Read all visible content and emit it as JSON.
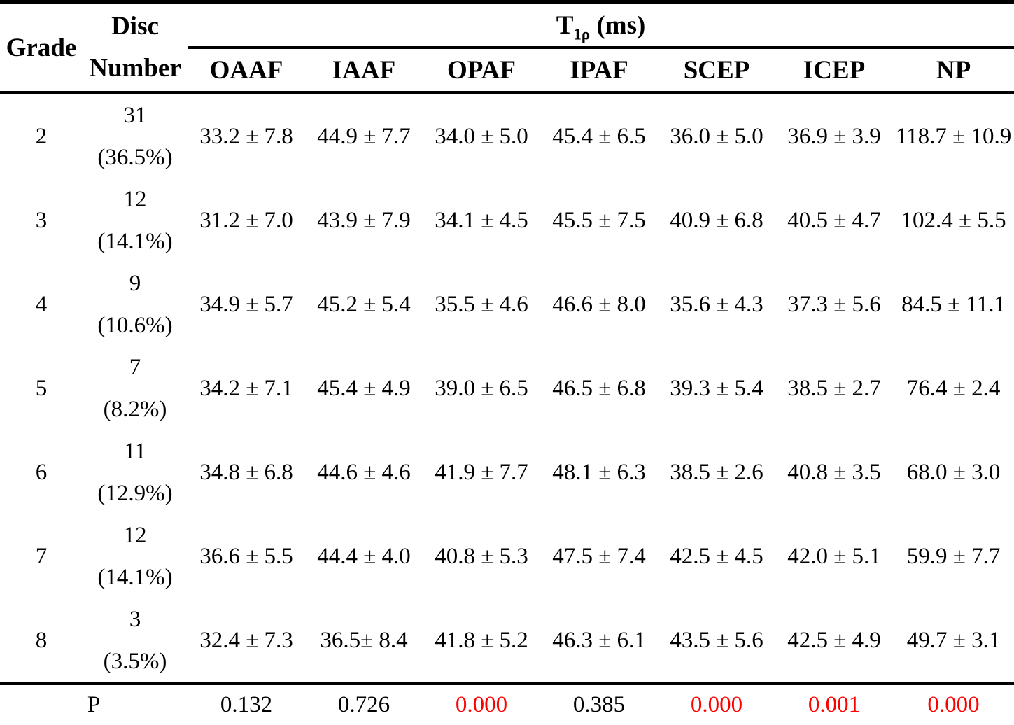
{
  "table": {
    "header": {
      "grade": "Grade",
      "disc_line1": "Disc",
      "disc_line2": "Number",
      "span_base": "T",
      "span_sub": "1ρ",
      "span_unit": " (ms)",
      "columns": [
        "OAAF",
        "IAAF",
        "OPAF",
        "IPAF",
        "SCEP",
        "ICEP",
        "NP"
      ]
    },
    "rows": [
      {
        "grade": "2",
        "disc_count": "31",
        "disc_percent": "(36.5%)",
        "values": [
          "33.2 ± 7.8",
          "44.9 ± 7.7",
          "34.0 ± 5.0",
          "45.4 ± 6.5",
          "36.0 ± 5.0",
          "36.9 ± 3.9",
          "118.7 ± 10.9"
        ]
      },
      {
        "grade": "3",
        "disc_count": "12",
        "disc_percent": "(14.1%)",
        "values": [
          "31.2 ± 7.0",
          "43.9 ± 7.9",
          "34.1 ± 4.5",
          "45.5 ± 7.5",
          "40.9 ± 6.8",
          "40.5 ± 4.7",
          "102.4 ± 5.5"
        ]
      },
      {
        "grade": "4",
        "disc_count": "9",
        "disc_percent": "(10.6%)",
        "values": [
          "34.9 ± 5.7",
          "45.2 ± 5.4",
          "35.5 ± 4.6",
          "46.6 ± 8.0",
          "35.6 ± 4.3",
          "37.3 ± 5.6",
          "84.5 ± 11.1"
        ]
      },
      {
        "grade": "5",
        "disc_count": "7",
        "disc_percent": "(8.2%)",
        "values": [
          "34.2 ± 7.1",
          "45.4 ± 4.9",
          "39.0 ± 6.5",
          "46.5 ± 6.8",
          "39.3 ± 5.4",
          "38.5 ± 2.7",
          "76.4 ± 2.4"
        ]
      },
      {
        "grade": "6",
        "disc_count": "11",
        "disc_percent": "(12.9%)",
        "values": [
          "34.8 ± 6.8",
          "44.6 ± 4.6",
          "41.9 ± 7.7",
          "48.1 ± 6.3",
          "38.5 ± 2.6",
          "40.8 ± 3.5",
          "68.0 ± 3.0"
        ]
      },
      {
        "grade": "7",
        "disc_count": "12",
        "disc_percent": "(14.1%)",
        "values": [
          "36.6 ± 5.5",
          "44.4 ± 4.0",
          "40.8 ± 5.3",
          "47.5 ± 7.4",
          "42.5 ± 4.5",
          "42.0 ± 5.1",
          "59.9 ± 7.7"
        ]
      },
      {
        "grade": "8",
        "disc_count": "3",
        "disc_percent": "(3.5%)",
        "values": [
          "32.4 ± 7.3",
          "36.5± 8.4",
          "41.8 ± 5.2",
          "46.3 ± 6.1",
          "43.5 ± 5.6",
          "42.5 ± 4.9",
          "49.7 ± 3.1"
        ]
      }
    ],
    "p_row": {
      "label": "P",
      "values": [
        {
          "text": "0.132",
          "significant": false
        },
        {
          "text": "0.726",
          "significant": false
        },
        {
          "text": "0.000",
          "significant": true
        },
        {
          "text": "0.385",
          "significant": false
        },
        {
          "text": "0.000",
          "significant": true
        },
        {
          "text": "0.001",
          "significant": true
        },
        {
          "text": "0.000",
          "significant": true
        }
      ]
    },
    "colors": {
      "text": "#000000",
      "significant_p": "#ff0000"
    }
  }
}
